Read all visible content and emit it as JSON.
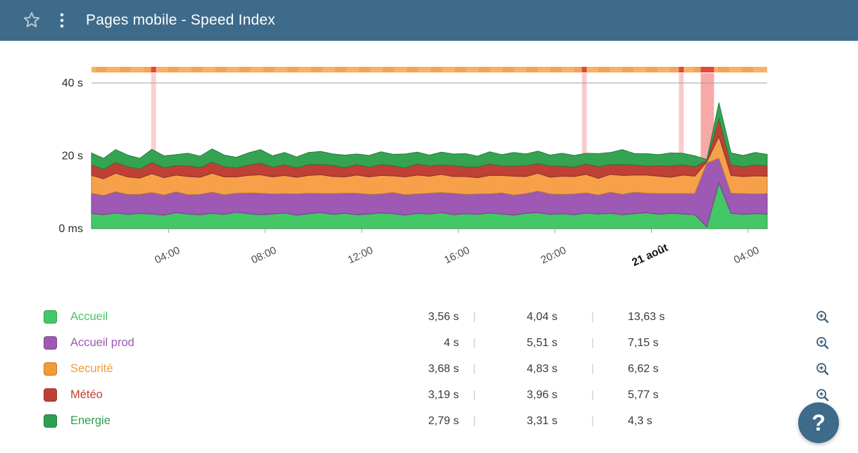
{
  "header": {
    "title": "Pages mobile - Speed Index",
    "colors": {
      "background": "#3e6b8a",
      "title_text": "#ffffff",
      "star": "#b9c7d2",
      "menu_dots": "#e8eef2"
    }
  },
  "icons": {
    "star": "star-outline",
    "menu": "kebab-vertical-dots",
    "row_zoom": "magnifier-plus",
    "help": "question-mark"
  },
  "help": {
    "label": "?"
  },
  "chart_data": {
    "type": "area",
    "stacked": true,
    "title": "Pages mobile - Speed Index",
    "xlabel": "",
    "ylabel": "",
    "ylim": [
      0,
      42
    ],
    "x_span_hours": 28,
    "grid": "horizontal-40s-only",
    "legend_position": "bottom-table",
    "y_ticks": [
      {
        "label": "0 ms",
        "value": 0
      },
      {
        "label": "20 s",
        "value": 20
      },
      {
        "label": "40 s",
        "value": 40
      }
    ],
    "x_ticks": [
      {
        "label": "04:00",
        "t": 3.2,
        "emphasis": false
      },
      {
        "label": "08:00",
        "t": 7.2,
        "emphasis": false
      },
      {
        "label": "12:00",
        "t": 11.2,
        "emphasis": false
      },
      {
        "label": "16:00",
        "t": 15.2,
        "emphasis": false
      },
      {
        "label": "20:00",
        "t": 19.2,
        "emphasis": false
      },
      {
        "label": "21 août",
        "t": 23.2,
        "emphasis": true
      },
      {
        "label": "04:00",
        "t": 27.2,
        "emphasis": false
      }
    ],
    "colors": {
      "alert_band": "#ef5350",
      "alert_strong": "#e4473f",
      "gridline": "#9aa0a6",
      "baseline": "#c9ced2"
    },
    "top_bar": {
      "color": "#f7b169",
      "alt_color": "#f19b4b"
    },
    "alert_bands": [
      {
        "t": 2.57,
        "width_h": 0.2,
        "opacity": 0.28
      },
      {
        "t": 20.42,
        "width_h": 0.2,
        "opacity": 0.3
      },
      {
        "t": 24.44,
        "width_h": 0.2,
        "opacity": 0.3
      },
      {
        "t": 25.52,
        "width_h": 0.55,
        "opacity": 0.5
      }
    ],
    "series": [
      {
        "name": "Accueil",
        "color": "#44c767",
        "unit": "s",
        "values": [
          4.1,
          3.8,
          4.3,
          3.9,
          4.2,
          4.0,
          3.7,
          4.4,
          4.0,
          3.8,
          4.2,
          3.9,
          4.5,
          4.1,
          3.8,
          4.0,
          4.3,
          3.7,
          4.1,
          4.4,
          3.9,
          4.2,
          3.8,
          4.0,
          4.3,
          4.1,
          3.7,
          4.2,
          4.0,
          4.4,
          3.8,
          4.1,
          3.9,
          4.3,
          4.0,
          3.7,
          4.2,
          4.4,
          3.9,
          4.1,
          3.8,
          4.3,
          4.0,
          4.2,
          3.8,
          4.1,
          4.4,
          3.9,
          4.2,
          4.0,
          3.8,
          0.5,
          12.5,
          4.2,
          3.9,
          4.1,
          4.0
        ]
      },
      {
        "name": "Accueil prod",
        "color": "#9d59b3",
        "unit": "s",
        "values": [
          5.6,
          5.3,
          5.8,
          5.5,
          5.2,
          5.9,
          5.5,
          5.7,
          5.3,
          5.6,
          5.8,
          5.4,
          5.2,
          5.7,
          5.9,
          5.5,
          5.3,
          5.8,
          5.6,
          5.2,
          5.7,
          5.5,
          5.9,
          5.4,
          5.2,
          5.8,
          5.6,
          5.3,
          5.7,
          5.5,
          5.9,
          5.3,
          5.6,
          5.2,
          5.8,
          5.5,
          5.4,
          5.9,
          5.6,
          5.3,
          5.7,
          5.5,
          5.2,
          5.8,
          5.6,
          5.9,
          5.3,
          5.7,
          5.4,
          5.6,
          5.8,
          17.5,
          6.8,
          5.5,
          5.7,
          5.4,
          5.6
        ]
      },
      {
        "name": "Securité",
        "color": "#f6a14a",
        "unit": "s",
        "values": [
          4.9,
          4.6,
          5.1,
          4.8,
          4.5,
          5.2,
          4.8,
          4.6,
          5.0,
          4.7,
          5.2,
          4.9,
          4.5,
          4.8,
          5.1,
          4.7,
          5.0,
          4.6,
          4.9,
          5.2,
          4.7,
          4.5,
          5.0,
          4.8,
          5.1,
          4.6,
          4.9,
          5.2,
          4.7,
          5.0,
          4.6,
          4.9,
          4.5,
          5.1,
          4.8,
          5.2,
          4.7,
          4.9,
          4.6,
          5.0,
          4.8,
          5.1,
          4.6,
          4.9,
          5.2,
          4.7,
          5.0,
          4.8,
          4.5,
          5.1,
          4.8,
          0.4,
          6.0,
          4.9,
          4.7,
          5.0,
          4.8
        ]
      },
      {
        "name": "Météo",
        "color": "#bf4036",
        "unit": "s",
        "values": [
          2.9,
          2.6,
          3.0,
          2.8,
          2.5,
          3.1,
          2.8,
          2.6,
          3.0,
          2.7,
          3.1,
          2.8,
          2.5,
          2.9,
          3.2,
          2.7,
          2.9,
          2.6,
          3.0,
          2.8,
          3.1,
          2.6,
          2.9,
          2.7,
          3.0,
          2.8,
          2.5,
          3.1,
          2.8,
          2.6,
          3.0,
          2.7,
          2.9,
          3.2,
          2.6,
          2.8,
          3.0,
          2.7,
          3.1,
          2.8,
          2.6,
          2.9,
          3.2,
          2.7,
          3.0,
          2.8,
          2.5,
          2.9,
          3.1,
          2.8,
          2.6,
          0.3,
          5.0,
          2.9,
          2.7,
          3.0,
          2.8
        ]
      },
      {
        "name": "Energie",
        "color": "#35a452",
        "unit": "s",
        "values": [
          3.3,
          3.0,
          3.5,
          3.2,
          2.9,
          3.6,
          3.2,
          3.0,
          3.4,
          3.1,
          3.6,
          3.2,
          2.9,
          3.3,
          3.7,
          3.1,
          3.4,
          3.0,
          3.3,
          3.6,
          3.1,
          3.4,
          2.9,
          3.2,
          3.5,
          3.1,
          3.8,
          3.2,
          3.0,
          3.5,
          3.2,
          3.6,
          3.0,
          3.3,
          3.1,
          3.7,
          3.2,
          3.4,
          3.0,
          3.5,
          3.2,
          2.9,
          3.6,
          3.3,
          4.1,
          3.1,
          3.4,
          3.0,
          3.6,
          3.2,
          3.0,
          0.3,
          4.3,
          3.3,
          3.1,
          3.4,
          3.2
        ]
      }
    ]
  },
  "legend": {
    "separator": "|",
    "rows": [
      {
        "name": "Accueil",
        "color": "#44c767",
        "values": [
          "3,56 s",
          "4,04 s",
          "13,63 s"
        ]
      },
      {
        "name": "Accueil prod",
        "color": "#9d59b3",
        "values": [
          "4 s",
          "5,51 s",
          "7,15 s"
        ]
      },
      {
        "name": "Securité",
        "color": "#f29b38",
        "values": [
          "3,68 s",
          "4,83 s",
          "6,62 s"
        ]
      },
      {
        "name": "Météo",
        "color": "#bf4036",
        "values": [
          "3,19 s",
          "3,96 s",
          "5,77 s"
        ]
      },
      {
        "name": "Energie",
        "color": "#2f9e4f",
        "values": [
          "2,79 s",
          "3,31 s",
          "4,3 s"
        ]
      }
    ]
  }
}
